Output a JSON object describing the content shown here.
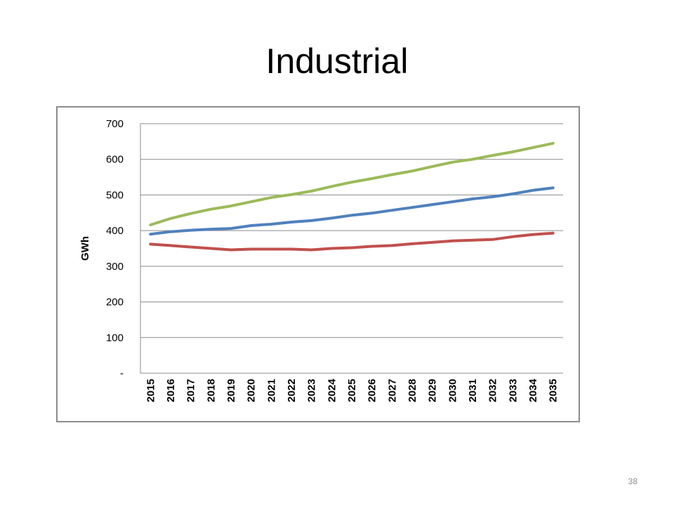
{
  "slide": {
    "title": "Industrial",
    "page_number": "38"
  },
  "chart_data": {
    "type": "line",
    "title": "",
    "xlabel": "",
    "ylabel": "GWh",
    "ylim": [
      0,
      700
    ],
    "y_ticks": [
      0,
      100,
      200,
      300,
      400,
      500,
      600,
      700
    ],
    "y_tick_labels": [
      "-",
      "100",
      "200",
      "300",
      "400",
      "500",
      "600",
      "700"
    ],
    "grid": true,
    "legend": "none",
    "categories": [
      "2015",
      "2016",
      "2017",
      "2018",
      "2019",
      "2020",
      "2021",
      "2022",
      "2023",
      "2024",
      "2025",
      "2026",
      "2027",
      "2028",
      "2029",
      "2030",
      "2031",
      "2032",
      "2033",
      "2034",
      "2035"
    ],
    "series": [
      {
        "color": "#9bbb59",
        "values": [
          416,
          434,
          448,
          460,
          469,
          481,
          493,
          501,
          511,
          524,
          536,
          546,
          557,
          567,
          580,
          592,
          600,
          611,
          621,
          633,
          645
        ]
      },
      {
        "color": "#4f81bd",
        "values": [
          390,
          397,
          401,
          404,
          406,
          414,
          418,
          424,
          428,
          435,
          443,
          449,
          457,
          465,
          473,
          481,
          489,
          495,
          503,
          513,
          520
        ]
      },
      {
        "color": "#c0504d",
        "values": [
          362,
          358,
          354,
          350,
          346,
          348,
          348,
          348,
          346,
          350,
          352,
          356,
          358,
          363,
          367,
          371,
          373,
          375,
          383,
          389,
          393
        ]
      }
    ]
  }
}
